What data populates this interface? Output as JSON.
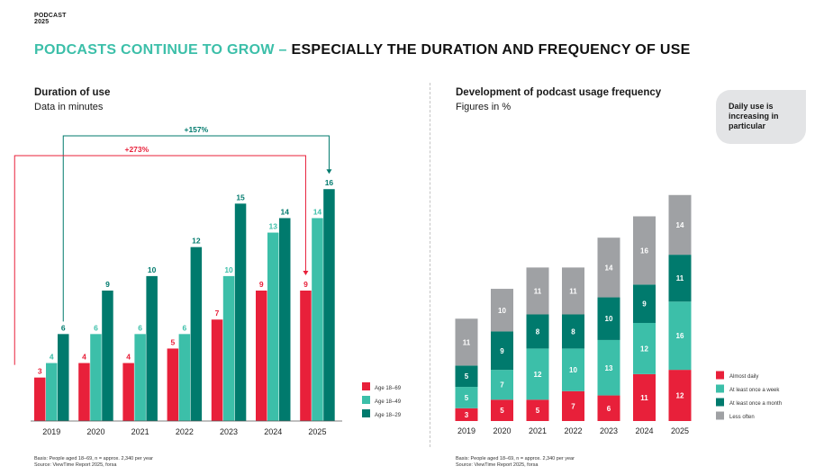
{
  "header": {
    "brand_line1": "PODCAST",
    "brand_line2": "2025",
    "headline_part1": "Podcasts continue to grow –",
    "headline_part2": "especially the duration and frequency of use"
  },
  "colors": {
    "red": "#e8203a",
    "light_teal": "#3cbfa9",
    "dark_teal": "#007a6d",
    "gray": "#9fa1a4",
    "headline_accent": "#3cbfa9"
  },
  "left_panel": {
    "title": "Duration of use",
    "subtitle": "Data in minutes",
    "footnote_line1": "Basis: People aged 18–69, n = approx. 2,340 per year",
    "footnote_line2": "Source: ViewTime Report 2025, forsa"
  },
  "right_panel": {
    "title": "Development of podcast usage frequency",
    "subtitle": "Figures in %",
    "callout": "Daily use is increasing in particular",
    "footnote_line1": "Basis: People aged 18–69, n = approx. 2,340 per year",
    "footnote_line2": "Source: ViewTime Report 2025, forsa"
  },
  "chart_data": [
    {
      "type": "bar",
      "title": "Duration of use",
      "subtitle": "Data in minutes",
      "categories": [
        "2019",
        "2020",
        "2021",
        "2022",
        "2023",
        "2024",
        "2025"
      ],
      "series": [
        {
          "name": "Age 18–69",
          "color": "#e8203a",
          "values": [
            3,
            4,
            4,
            5,
            7,
            9,
            9
          ]
        },
        {
          "name": "Age 18–49",
          "color": "#3cbfa9",
          "values": [
            4,
            6,
            6,
            6,
            10,
            13,
            14
          ]
        },
        {
          "name": "Age 18–29",
          "color": "#007a6d",
          "values": [
            6,
            9,
            10,
            12,
            15,
            14,
            16
          ]
        }
      ],
      "annotations": [
        {
          "label": "+157%",
          "series": "Age 18–29",
          "from": "2019",
          "to": "2025",
          "color": "#007a6d"
        },
        {
          "label": "+273%",
          "series": "Age 18–69",
          "from": "2019",
          "to": "2025",
          "color": "#e8203a"
        }
      ],
      "ylim": [
        0,
        18
      ],
      "grid": false,
      "legend_position": "bottom-right"
    },
    {
      "type": "bar",
      "stacked": true,
      "title": "Development of podcast usage frequency",
      "subtitle": "Figures in %",
      "categories": [
        "2019",
        "2020",
        "2021",
        "2022",
        "2023",
        "2024",
        "2025"
      ],
      "series": [
        {
          "name": "Almost daily",
          "color": "#e8203a",
          "values": [
            3,
            5,
            5,
            7,
            6,
            11,
            12
          ]
        },
        {
          "name": "At least once a week",
          "color": "#3cbfa9",
          "values": [
            5,
            7,
            12,
            10,
            13,
            12,
            16
          ]
        },
        {
          "name": "At least once a month",
          "color": "#007a6d",
          "values": [
            5,
            9,
            8,
            8,
            10,
            9,
            11
          ]
        },
        {
          "name": "Less often",
          "color": "#9fa1a4",
          "values": [
            11,
            10,
            11,
            11,
            14,
            16,
            14
          ]
        }
      ],
      "ylim": [
        0,
        55
      ],
      "grid": false,
      "legend_position": "bottom-right"
    }
  ]
}
